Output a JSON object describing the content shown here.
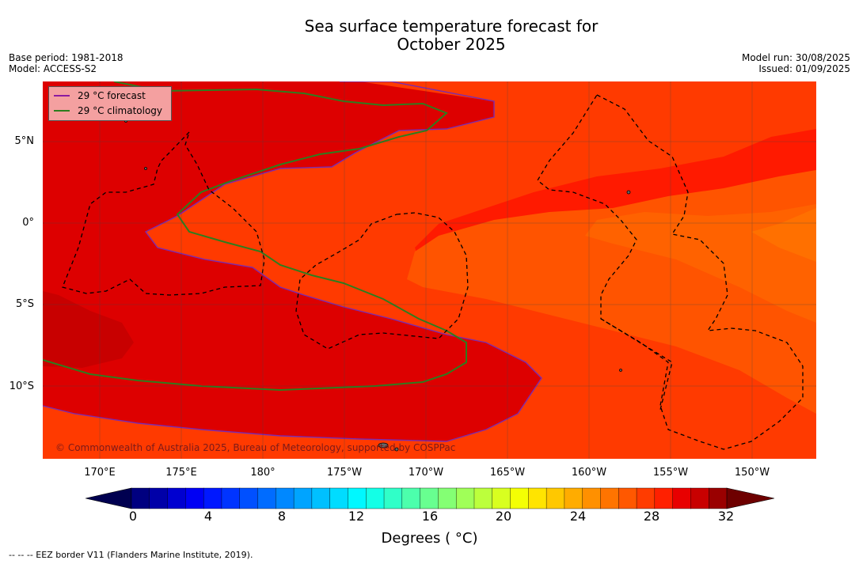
{
  "title_line1": "Sea surface temperature forecast for",
  "title_line2": "October 2025",
  "meta": {
    "base_period": "Base period: 1981-2018",
    "model": "Model: ACCESS-S2",
    "model_run": "Model run: 30/08/2025",
    "issued": "Issued: 01/09/2025"
  },
  "map": {
    "lat_labels": [
      "5°N",
      "0°",
      "5°S",
      "10°S"
    ],
    "lon_labels": [
      "170°E",
      "175°E",
      "180°",
      "175°W",
      "170°W",
      "165°W",
      "160°W",
      "155°W",
      "150°W"
    ],
    "legend": {
      "forecast_label": "29 °C  forecast",
      "climatology_label": "29 °C  climatology",
      "forecast_color": "#8b1aa0",
      "climatology_color": "#2e7d1e"
    },
    "copyright": "© Commonwealth of Australia 2025, Bureau of Meteorology, supported by COSPPac",
    "colors": {
      "deep_red": "#dd0000",
      "darker_red": "#c80000",
      "red": "#ff1a00",
      "red_orange": "#ff3a00",
      "orange": "#ff5400",
      "light_orange": "#ff7000"
    }
  },
  "colorbar": {
    "ticks": [
      "0",
      "4",
      "8",
      "12",
      "16",
      "20",
      "24",
      "28",
      "32"
    ],
    "label": "Degrees ( °C)",
    "colors": [
      "#000080",
      "#0000a8",
      "#0000d0",
      "#0000f4",
      "#0018ff",
      "#0034ff",
      "#0050ff",
      "#006cff",
      "#0088ff",
      "#00a4ff",
      "#00c0ff",
      "#00dcff",
      "#00f8ff",
      "#14ffe6",
      "#30ffc8",
      "#4cffac",
      "#68ff90",
      "#84ff74",
      "#a0ff58",
      "#bcff3c",
      "#d8ff20",
      "#f4ff04",
      "#ffe400",
      "#ffc800",
      "#ffac00",
      "#ff9000",
      "#ff7400",
      "#ff5800",
      "#ff3c00",
      "#ff2000",
      "#e80000",
      "#c80000",
      "#9a0000"
    ]
  },
  "footnote": "--  --  -- EEZ border V11 (Flanders Marine Institute, 2019)."
}
